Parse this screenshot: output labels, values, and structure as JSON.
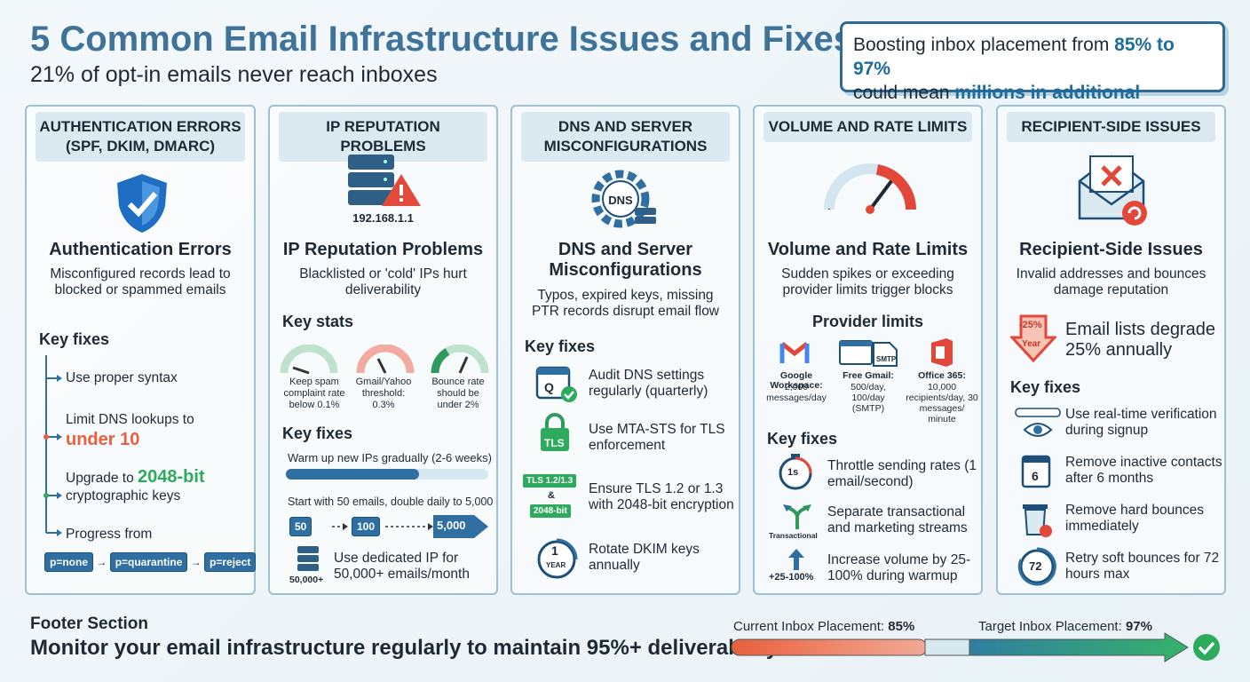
{
  "header": {
    "title": "5 Common Email Infrastructure Issues and Fixes",
    "subtitle": "21% of opt-in emails never reach inboxes"
  },
  "callout": {
    "text_1": "Boosting inbox placement from",
    "highlight_1": "85% to 97%",
    "text_2": "could mean",
    "highlight_2": "millions in additional revenue"
  },
  "columns": [
    {
      "header": "AUTHENTICATION ERRORS (SPF, DKIM, DMARC)",
      "title": "Authentication Errors",
      "description": "Misconfigured records lead to blocked or spammed emails",
      "fixes_title": "Key fixes",
      "fixes": [
        {
          "text": "Use proper syntax"
        },
        {
          "text": "Limit DNS lookups to",
          "highlight": "under 10"
        },
        {
          "text": "Upgrade to",
          "highlight": "2048-bit",
          "text_after": "cryptographic keys"
        },
        {
          "text": "Progress from"
        }
      ],
      "flow": [
        "p=none",
        "p=quarantine",
        "p=reject"
      ]
    },
    {
      "header": "IP REPUTATION PROBLEMS",
      "icon_label": "192.168.1.1",
      "title": "IP Reputation Problems",
      "description": "Blacklisted or 'cold' IPs hurt deliverability",
      "stats_title": "Key stats",
      "stats": [
        "Keep spam complaint rate below 0.1%",
        "Gmail/Yahoo threshold: 0.3%",
        "Bounce rate should be under 2%"
      ],
      "fixes_title": "Key fixes",
      "fixes": [
        {
          "text": "Warm up new IPs gradually (2-6 weeks)"
        },
        {
          "text": "Start with 50 emails, double daily to 5,000",
          "steps": [
            "50",
            "100",
            "5,000"
          ]
        },
        {
          "text": "Use dedicated IP for 50,000+ emails/month",
          "icon_label": "50,000+"
        }
      ]
    },
    {
      "header": "DNS AND SERVER MISCONFIGURATIONS",
      "icon_label": "DNS",
      "title": "DNS and Server Misconfigurations",
      "description": "Typos, expired keys, missing PTR records disrupt email flow",
      "fixes_title": "Key fixes",
      "fixes": [
        {
          "text": "Audit DNS settings regularly (quarterly)",
          "icon_label": "Q"
        },
        {
          "text": "Use MTA-STS for TLS enforcement",
          "icon_label": "TLS"
        },
        {
          "text": "Ensure TLS 1.2 or 1.3 with 2048-bit encryption",
          "icon_labels": [
            "TLS 1.2/1.3",
            "&",
            "2048-bit"
          ]
        },
        {
          "text": "Rotate DKIM keys annually",
          "icon_labels": [
            "1",
            "YEAR"
          ]
        }
      ]
    },
    {
      "header": "VOLUME AND RATE LIMITS",
      "title": "Volume and Rate Limits",
      "description": "Sudden spikes or exceeding provider limits trigger blocks",
      "providers_title": "Provider limits",
      "providers": [
        {
          "name": "Google Workspace:",
          "limit": "2,000 messages/day"
        },
        {
          "name": "Free Gmail:",
          "limit": "500/day, 100/day (SMTP)",
          "icon_label": "SMTP"
        },
        {
          "name": "Office 365:",
          "limit": "10,000 recipients/day, 30 messages/ minute"
        }
      ],
      "fixes_title": "Key fixes",
      "fixes": [
        {
          "text": "Throttle sending rates (1 email/second)",
          "icon_label": "1s"
        },
        {
          "text": "Separate transactional and marketing streams",
          "icon_label": "Transactional"
        },
        {
          "text": "Increase volume by 25-100% during warmup",
          "icon_label": "+25-100%"
        }
      ]
    },
    {
      "header": "RECIPIENT-SIDE ISSUES",
      "title": "Recipient-Side Issues",
      "description": "Invalid addresses and bounces damage reputation",
      "stat": {
        "icon_labels": [
          "-25%",
          "Year"
        ],
        "text": "Email lists degrade 25% annually"
      },
      "fixes_title": "Key fixes",
      "fixes": [
        {
          "text": "Use real-time verification during signup"
        },
        {
          "text": "Remove inactive contacts after 6 months",
          "icon_label": "6"
        },
        {
          "text": "Remove hard bounces immediately"
        },
        {
          "text": "Retry soft bounces for 72 hours max",
          "icon_label": "72"
        }
      ]
    }
  ],
  "footer": {
    "section_label": "Footer Section",
    "message": "Monitor your email infrastructure regularly to maintain 95%+ deliverability",
    "current": {
      "label": "Current Inbox Placement:",
      "value": "85%"
    },
    "target": {
      "label": "Target Inbox Placement:",
      "value": "97%"
    }
  }
}
